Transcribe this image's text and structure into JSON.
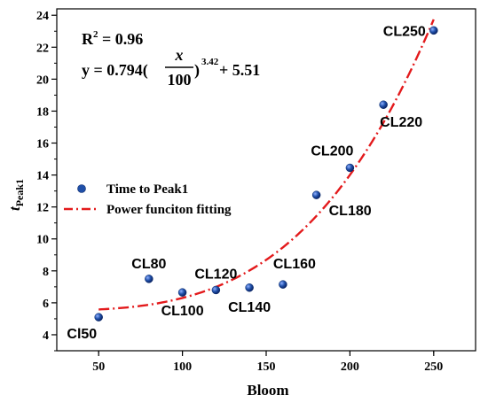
{
  "chart_data": {
    "type": "scatter",
    "xlabel": "Bloom",
    "ylabel": {
      "main": "t",
      "sub": "Peak1"
    },
    "xlim": [
      25,
      275
    ],
    "ylim": [
      3,
      24.4
    ],
    "x_ticks": [
      50,
      100,
      150,
      200,
      250
    ],
    "y_ticks": [
      4,
      6,
      8,
      10,
      12,
      14,
      16,
      18,
      20,
      22,
      24
    ],
    "grid": false,
    "legend_position": "middle-left",
    "series": [
      {
        "name": "Time to Peak1",
        "kind": "points",
        "color": "#1f4fa8",
        "points": [
          {
            "x": 50,
            "y": 5.1,
            "label": "Cl50"
          },
          {
            "x": 80,
            "y": 7.5,
            "label": "CL80"
          },
          {
            "x": 100,
            "y": 6.65,
            "label": "CL100"
          },
          {
            "x": 120,
            "y": 6.8,
            "label": "CL120"
          },
          {
            "x": 140,
            "y": 6.95,
            "label": "CL140"
          },
          {
            "x": 160,
            "y": 7.15,
            "label": "CL160"
          },
          {
            "x": 180,
            "y": 12.75,
            "label": "CL180"
          },
          {
            "x": 200,
            "y": 14.45,
            "label": "CL200"
          },
          {
            "x": 220,
            "y": 18.4,
            "label": "CL220"
          },
          {
            "x": 250,
            "y": 23.05,
            "label": "CL250"
          }
        ]
      },
      {
        "name": "Power funciton fitting",
        "kind": "fit-curve",
        "color": "#e31a1c",
        "model": {
          "a": 0.794,
          "b": 3.42,
          "c": 5.51,
          "x_scale": 100,
          "x_range": [
            50,
            250
          ]
        }
      }
    ],
    "annotations": {
      "r2_prefix": "R",
      "r2_exp": "2",
      "r2_value": " = 0.96",
      "eq_lhs": "y = 0.794(",
      "eq_num": "x",
      "eq_den": "100",
      "eq_close": ")",
      "eq_exp": "3.42",
      "eq_tail": " + 5.51"
    }
  }
}
